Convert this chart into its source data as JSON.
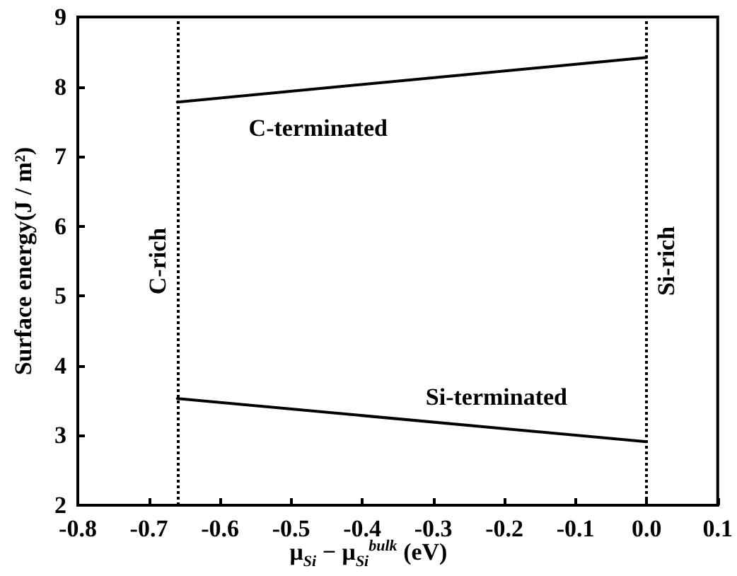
{
  "chart_data": {
    "type": "line",
    "xlabel": "μ$_{Si}$ − μ$_{Si}$$^{bulk}$ (eV)",
    "ylabel": "Surface energy(J / m²)",
    "xlim": [
      -0.8,
      0.1
    ],
    "xticks": [
      -0.8,
      -0.7,
      -0.6,
      -0.5,
      -0.4,
      -0.3,
      -0.2,
      -0.1,
      {
        "value": 0,
        "label": "0.0"
      },
      0.1
    ],
    "x": [
      -0.66,
      0
    ],
    "ylim": [
      2,
      9
    ],
    "yticks": [
      2,
      3,
      4,
      5,
      6,
      7,
      8,
      9
    ],
    "series": [
      {
        "name": "C-terminated",
        "color": "#000000",
        "values": [
          7.78,
          8.42
        ]
      },
      {
        "name": "Si-terminated",
        "color": "#000000",
        "values": [
          3.53,
          2.91
        ]
      }
    ],
    "ref_lines": [
      {
        "axis": "x",
        "value": -0.66,
        "label": "C-rich",
        "color": "#000000",
        "line_style": "dotted"
      },
      {
        "axis": "x",
        "value": 0,
        "label": "Si-rich",
        "color": "#000000",
        "line_style": "dotted"
      }
    ],
    "grid": false,
    "legend": false,
    "marker": "none",
    "line_style": "solid"
  }
}
